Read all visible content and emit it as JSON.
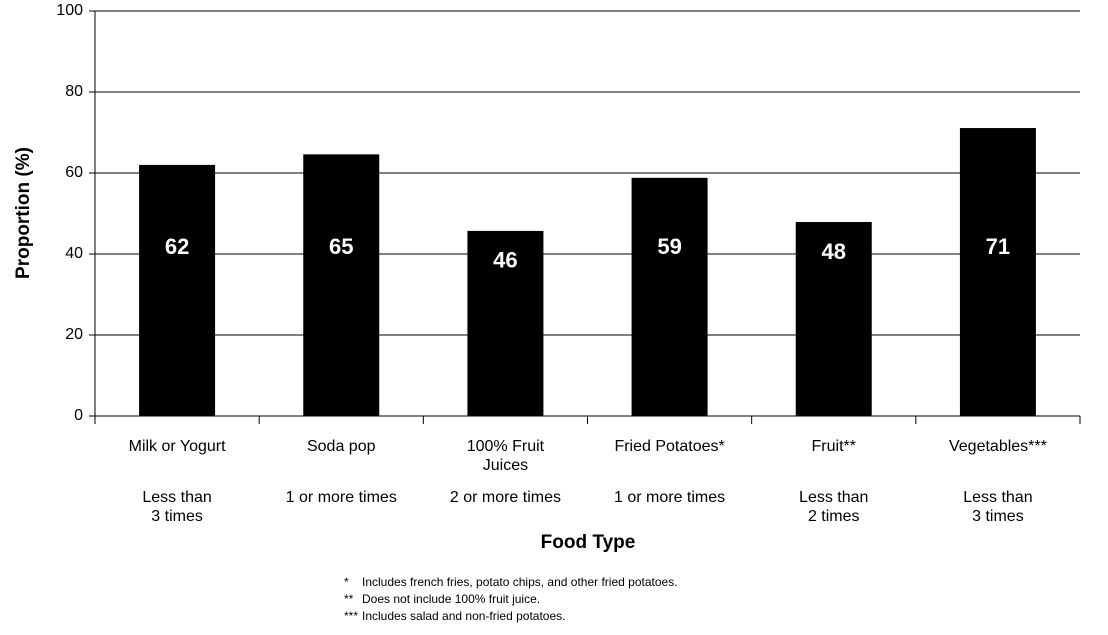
{
  "chart_data": {
    "type": "bar",
    "ylabel": "Proportion (%)",
    "xlabel": "Food Type",
    "categories": [
      "Milk or Yogurt",
      "Soda pop",
      "100% Fruit\nJuices",
      "Fried Potatoes*",
      "Fruit**",
      "Vegetables***"
    ],
    "frequencies": [
      "Less than\n3 times",
      "1 or more times",
      "2 or more times",
      "1 or more times",
      "Less than\n2 times",
      "Less than\n3 times"
    ],
    "values": [
      62,
      64.6,
      45.7,
      58.8,
      47.9,
      71.1
    ],
    "value_labels": [
      "62",
      "65",
      "46",
      "59",
      "48",
      "71"
    ],
    "color": "#000000",
    "ylim": [
      0,
      100
    ],
    "yticks": [
      0,
      20,
      40,
      60,
      80,
      100
    ],
    "grid": true,
    "notes": [
      {
        "marker": "*",
        "text": "Includes french fries, potato chips, and other fried potatoes."
      },
      {
        "marker": "**",
        "text": "Does not include 100% fruit juice."
      },
      {
        "marker": "***",
        "text": "Includes salad and non-fried potatoes."
      }
    ]
  }
}
